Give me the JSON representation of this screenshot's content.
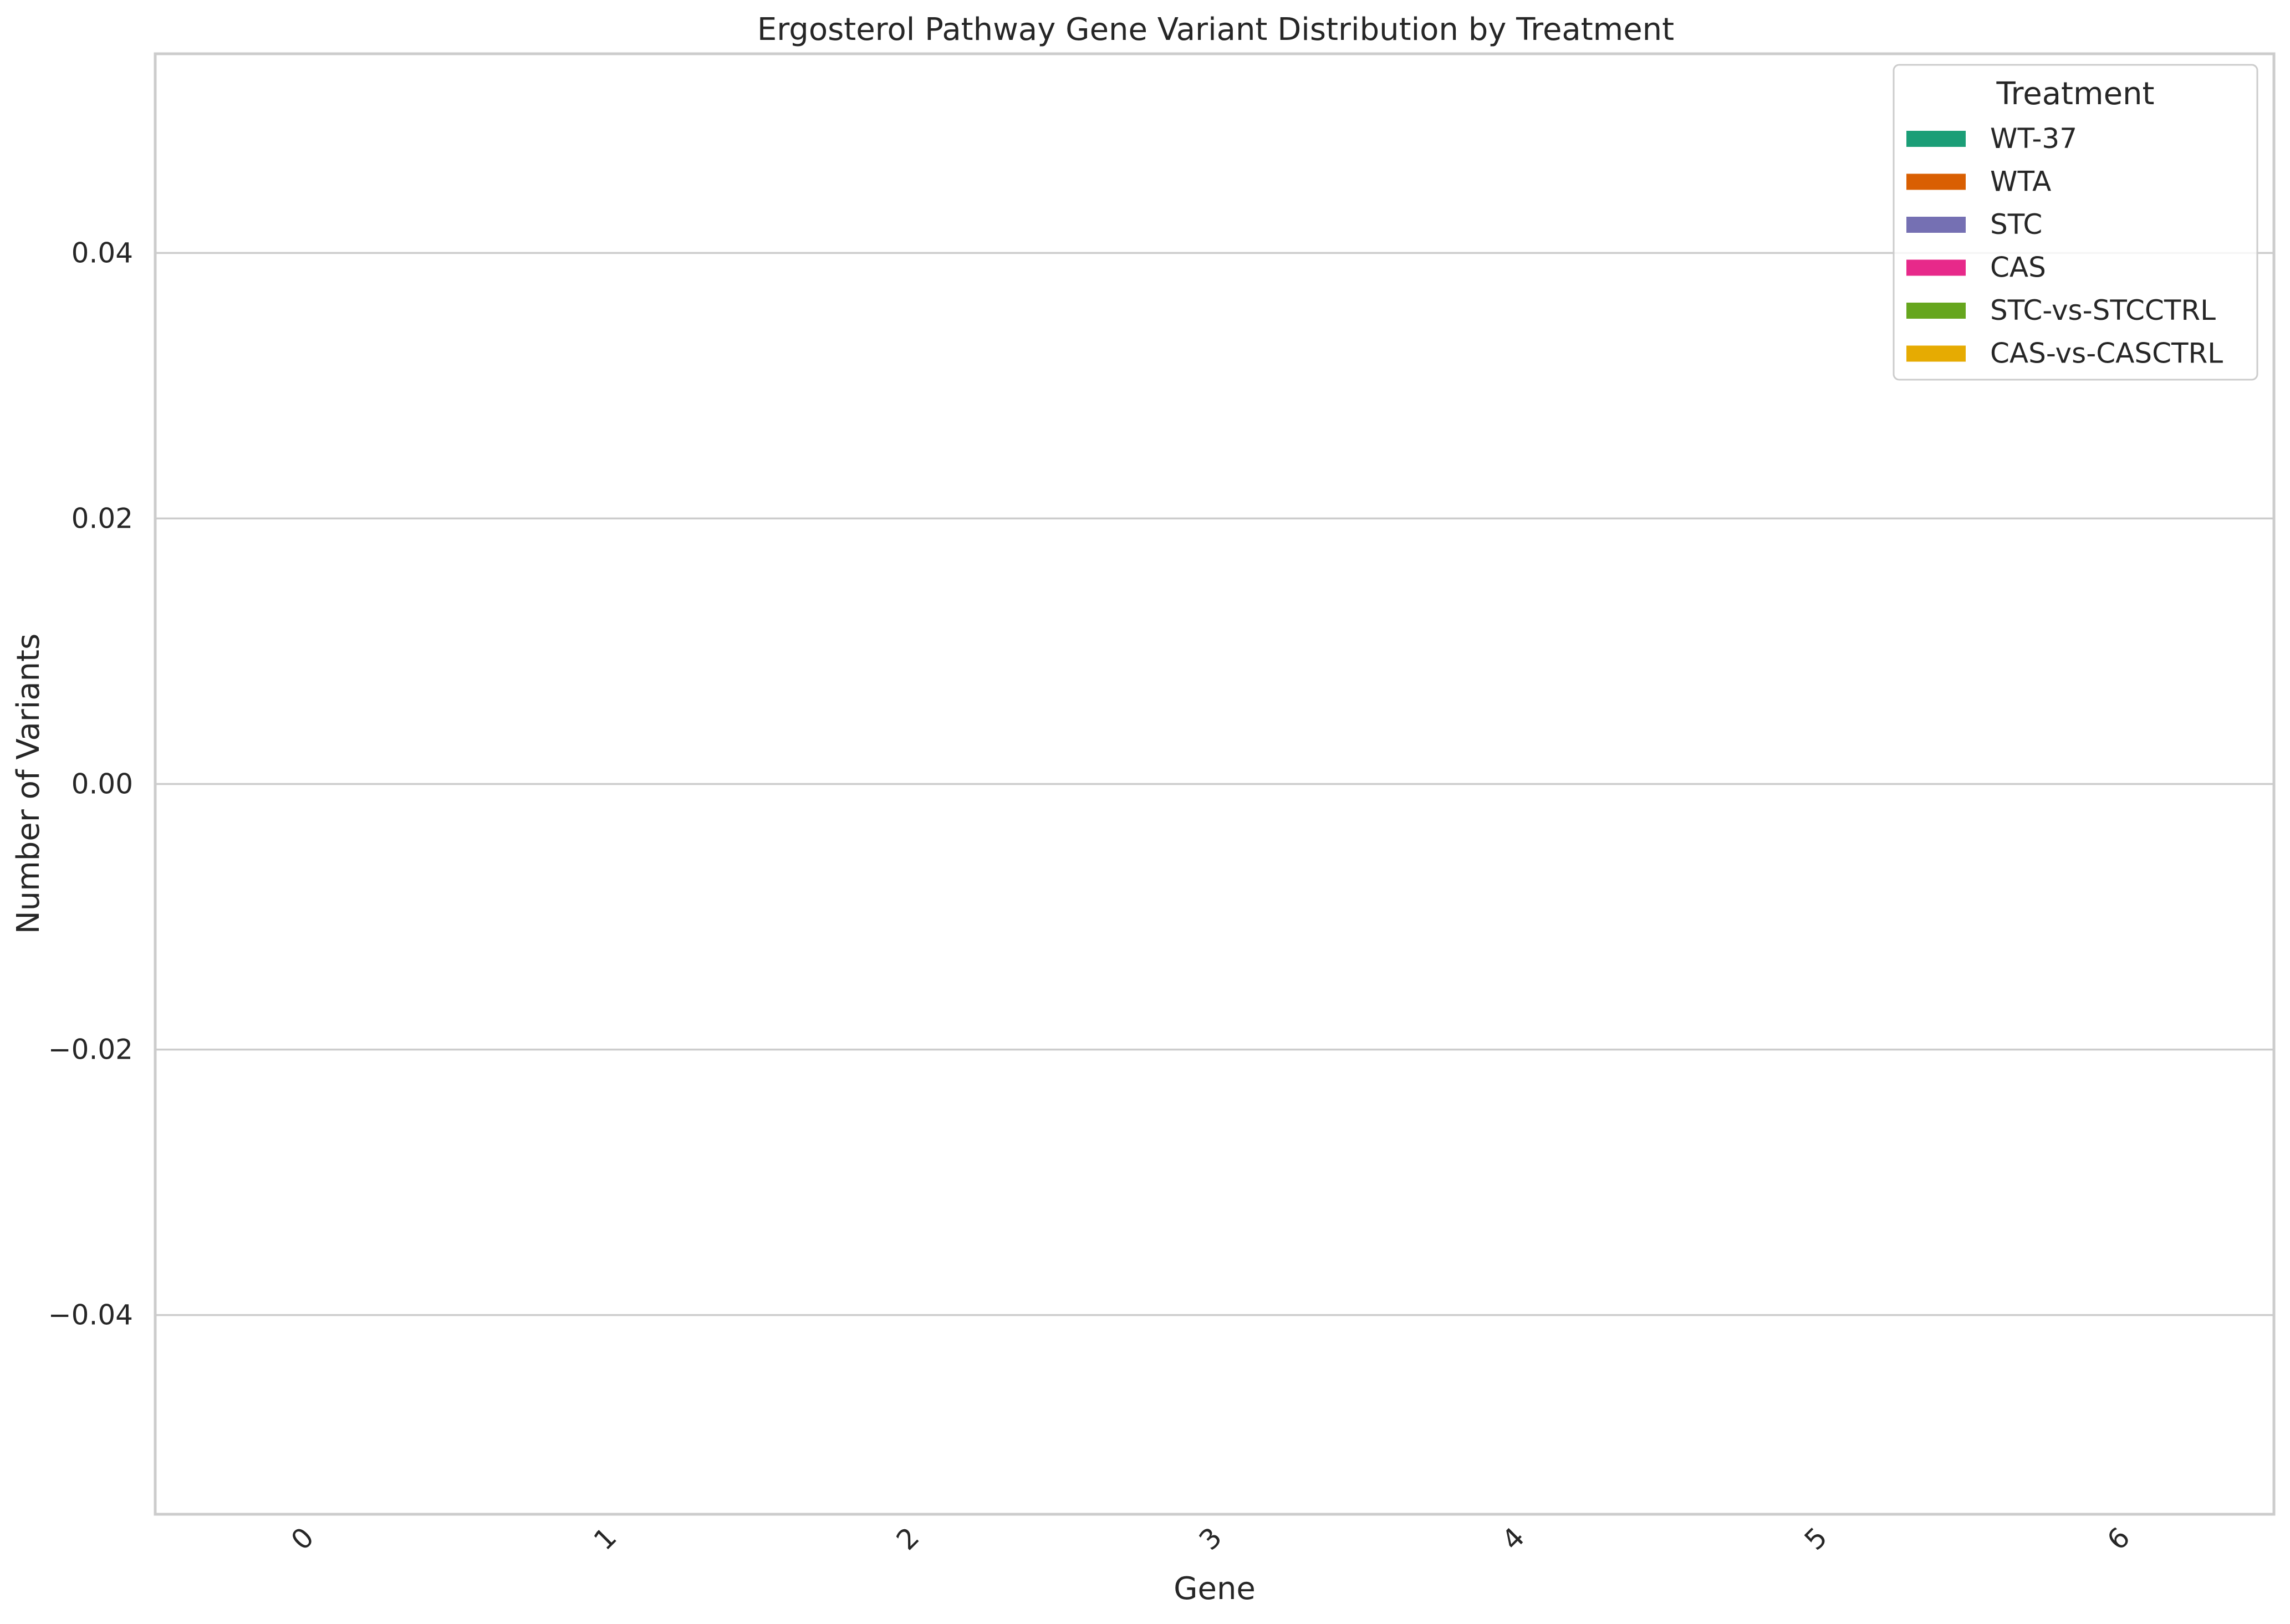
{
  "chart_data": {
    "type": "bar",
    "title": "Ergosterol Pathway Gene Variant Distribution by Treatment",
    "xlabel": "Gene",
    "ylabel": "Number of Variants",
    "categories": [
      "0",
      "1",
      "2",
      "3",
      "4",
      "5",
      "6"
    ],
    "ylim": [
      -0.055,
      0.055
    ],
    "y_ticks": [
      -0.04,
      -0.02,
      0.0,
      0.02,
      0.04
    ],
    "y_tick_labels": [
      "−0.04",
      "−0.02",
      "0.00",
      "0.02",
      "0.04"
    ],
    "grid": "horizontal",
    "legend": {
      "title": "Treatment",
      "placement": "top-right"
    },
    "series": [
      {
        "name": "WT-37",
        "color": "#1b9e77",
        "values": [
          0,
          0,
          0,
          0,
          0,
          0,
          0
        ]
      },
      {
        "name": "WTA",
        "color": "#d95f02",
        "values": [
          0,
          0,
          0,
          0,
          0,
          0,
          0
        ]
      },
      {
        "name": "STC",
        "color": "#7570b3",
        "values": [
          0,
          0,
          0,
          0,
          0,
          0,
          0
        ]
      },
      {
        "name": "CAS",
        "color": "#e7298a",
        "values": [
          0,
          0,
          0,
          0,
          0,
          0,
          0
        ]
      },
      {
        "name": "STC-vs-STCCTRL",
        "color": "#66a61e",
        "values": [
          0,
          0,
          0,
          0,
          0,
          0,
          0
        ]
      },
      {
        "name": "CAS-vs-CASCTRL",
        "color": "#e6ab02",
        "values": [
          0,
          0,
          0,
          0,
          0,
          0,
          0
        ]
      }
    ]
  }
}
